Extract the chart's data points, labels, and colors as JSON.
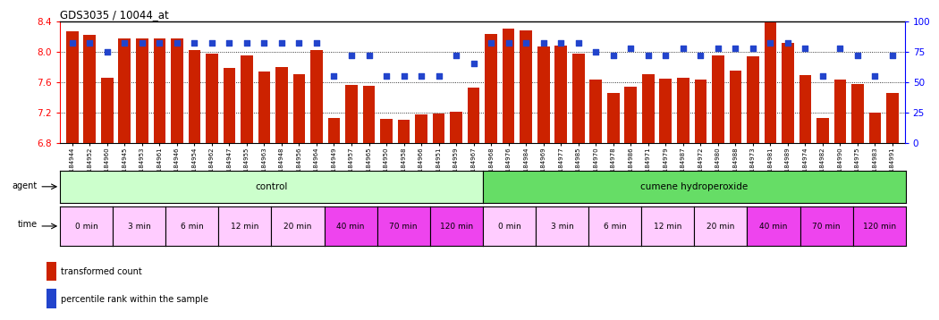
{
  "title": "GDS3035 / 10044_at",
  "sample_ids": [
    "GSM184944",
    "GSM184952",
    "GSM184960",
    "GSM184945",
    "GSM184953",
    "GSM184961",
    "GSM184946",
    "GSM184954",
    "GSM184962",
    "GSM184947",
    "GSM184955",
    "GSM184963",
    "GSM184948",
    "GSM184956",
    "GSM184964",
    "GSM184949",
    "GSM184957",
    "GSM184965",
    "GSM184950",
    "GSM184958",
    "GSM184966",
    "GSM184951",
    "GSM184959",
    "GSM184967",
    "GSM184968",
    "GSM184976",
    "GSM184984",
    "GSM184969",
    "GSM184977",
    "GSM184985",
    "GSM184970",
    "GSM184978",
    "GSM184986",
    "GSM184971",
    "GSM184979",
    "GSM184987",
    "GSM184972",
    "GSM184980",
    "GSM184988",
    "GSM184973",
    "GSM184981",
    "GSM184989",
    "GSM184974",
    "GSM184982",
    "GSM184990",
    "GSM184975",
    "GSM184983",
    "GSM184991"
  ],
  "bar_values": [
    8.27,
    8.22,
    7.65,
    8.17,
    8.17,
    8.17,
    8.17,
    8.02,
    7.97,
    7.78,
    7.95,
    7.74,
    7.79,
    7.7,
    8.02,
    7.13,
    7.56,
    7.55,
    7.12,
    7.1,
    7.17,
    7.19,
    7.21,
    7.52,
    8.23,
    8.3,
    8.28,
    8.07,
    8.08,
    7.97,
    7.63,
    7.45,
    7.54,
    7.7,
    7.64,
    7.66,
    7.63,
    7.95,
    7.75,
    7.94,
    8.38,
    8.11,
    7.69,
    7.13,
    7.63,
    7.57,
    7.2,
    7.45
  ],
  "percentile_values": [
    82,
    82,
    75,
    82,
    82,
    82,
    82,
    82,
    82,
    82,
    82,
    82,
    82,
    82,
    82,
    55,
    72,
    72,
    55,
    55,
    55,
    55,
    72,
    65,
    82,
    82,
    82,
    82,
    82,
    82,
    75,
    72,
    78,
    72,
    72,
    78,
    72,
    78,
    78,
    78,
    82,
    82,
    78,
    55,
    78,
    72,
    55,
    72
  ],
  "bar_color": "#cc2200",
  "dot_color": "#2244cc",
  "ylim_left": [
    6.8,
    8.4
  ],
  "ylim_right": [
    0,
    100
  ],
  "yticks_left": [
    6.8,
    7.2,
    7.6,
    8.0,
    8.4
  ],
  "yticks_right": [
    0,
    25,
    50,
    75,
    100
  ],
  "time_labels": [
    "0 min",
    "3 min",
    "6 min",
    "12 min",
    "20 min",
    "40 min",
    "70 min",
    "120 min"
  ],
  "time_colors": [
    "#ffccff",
    "#ffccff",
    "#ffccff",
    "#ffccff",
    "#ffccff",
    "#ee44ee",
    "#ee44ee",
    "#ee44ee"
  ],
  "agent_labels": [
    "control",
    "cumene hydroperoxide"
  ],
  "agent_colors": [
    "#ccffcc",
    "#66dd66"
  ],
  "legend_bar": "transformed count",
  "legend_dot": "percentile rank within the sample"
}
